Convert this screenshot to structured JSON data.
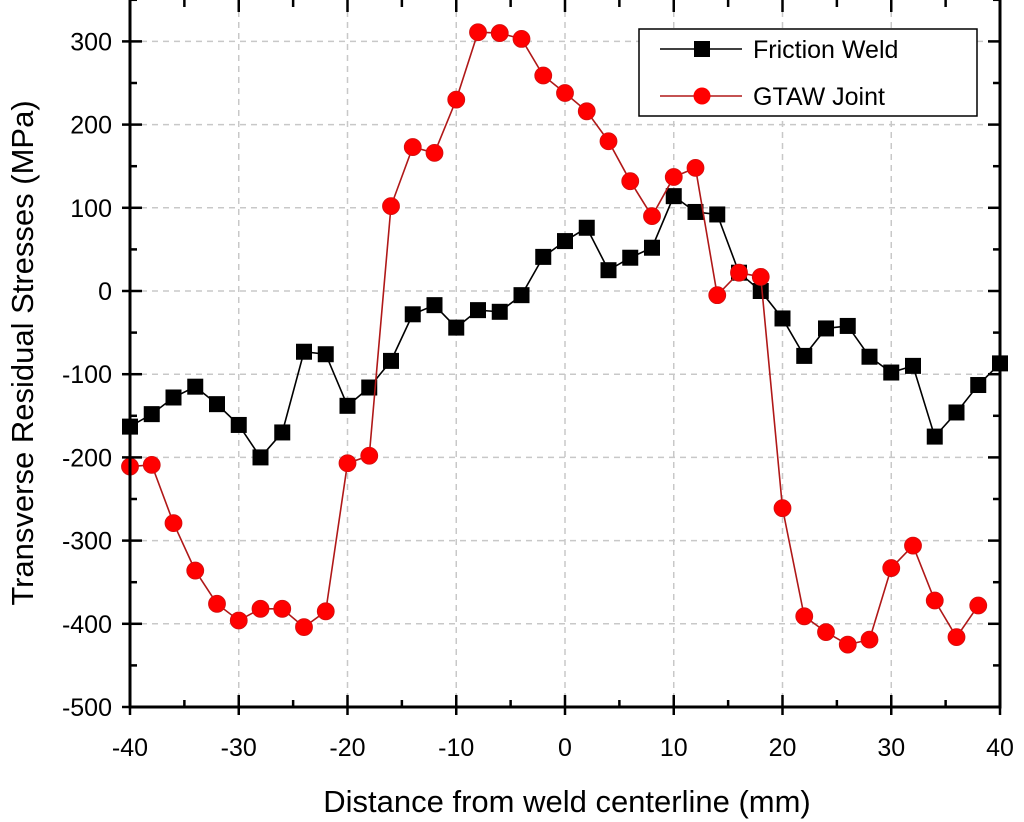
{
  "chart_data": {
    "type": "line",
    "title": "",
    "xlabel": "Distance from weld centerline (mm)",
    "ylabel": "Transverse Residual Stresses (MPa)",
    "xlim": [
      -40,
      40
    ],
    "ylim": [
      -500,
      350
    ],
    "xticks": [
      -40,
      -30,
      -20,
      -10,
      0,
      10,
      20,
      30,
      40
    ],
    "yticks": [
      -500,
      -400,
      -300,
      -200,
      -100,
      0,
      100,
      200,
      300
    ],
    "xtick_labels": [
      "-40",
      "-30",
      "-20",
      "-10",
      "0",
      "10",
      "20",
      "30",
      "40"
    ],
    "ytick_labels": [
      "-500",
      "-400",
      "-300",
      "-200",
      "-100",
      "0",
      "100",
      "200",
      "300"
    ],
    "grid": true,
    "legend_position": "top-right",
    "series": [
      {
        "name": "Friction Weld",
        "color": "#000000",
        "marker": "square",
        "x": [
          -40,
          -38,
          -36,
          -34,
          -32,
          -30,
          -28,
          -26,
          -24,
          -22,
          -20,
          -18,
          -16,
          -14,
          -12,
          -10,
          -8,
          -6,
          -4,
          -2,
          0,
          2,
          4,
          6,
          8,
          10,
          12,
          14,
          16,
          18,
          20,
          22,
          24,
          26,
          28,
          30,
          32,
          34,
          36,
          38,
          40
        ],
        "y": [
          -163,
          -148,
          -128,
          -115,
          -136,
          -161,
          -200,
          -170,
          -73,
          -76,
          -138,
          -116,
          -84,
          -28,
          -17,
          -44,
          -23,
          -25,
          -5,
          41,
          60,
          76,
          25,
          40,
          52,
          114,
          95,
          92,
          22,
          0,
          -33,
          -78,
          -45,
          -42,
          -79,
          -98,
          -90,
          -175,
          -146,
          -113,
          -87
        ]
      },
      {
        "name": "GTAW Joint",
        "color": "#ff0000",
        "line_color": "#b01818",
        "marker": "circle",
        "x": [
          -40,
          -38,
          -36,
          -34,
          -32,
          -30,
          -28,
          -26,
          -24,
          -22,
          -20,
          -18,
          -16,
          -14,
          -12,
          -10,
          -8,
          -6,
          -4,
          -2,
          0,
          2,
          4,
          6,
          8,
          10,
          12,
          14,
          16,
          18,
          20,
          22,
          24,
          26,
          28,
          30,
          32,
          34,
          36,
          38
        ],
        "y": [
          -211,
          -209,
          -279,
          -336,
          -376,
          -396,
          -382,
          -382,
          -404,
          -385,
          -207,
          -198,
          102,
          173,
          166,
          230,
          311,
          310,
          303,
          259,
          238,
          216,
          180,
          132,
          90,
          137,
          148,
          -5,
          22,
          17,
          -261,
          -391,
          -410,
          -425,
          -419,
          -333,
          -306,
          -372,
          -416,
          -378
        ]
      }
    ]
  }
}
